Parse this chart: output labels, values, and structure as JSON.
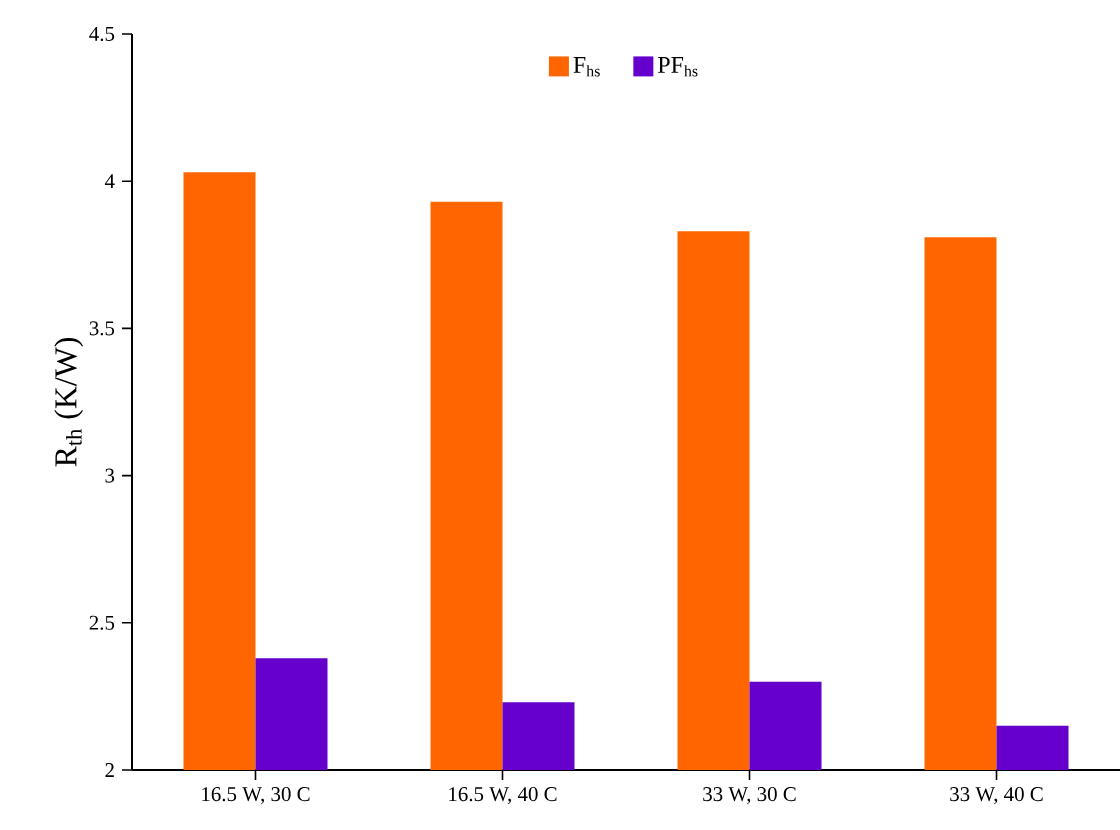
{
  "chart_data": {
    "type": "bar",
    "ylabel": "R$_{th}$ (K/W)",
    "categories": [
      "16.5 W, 30 C",
      "16.5 W, 40 C",
      "33 W, 30 C",
      "33 W, 40 C"
    ],
    "series": [
      {
        "name": "F$_{hs}$",
        "color": "#ff6600",
        "values": [
          4.03,
          3.93,
          3.83,
          3.81
        ]
      },
      {
        "name": "PF$_{hs}$",
        "color": "#6600cc",
        "values": [
          2.38,
          2.23,
          2.3,
          2.15
        ]
      }
    ],
    "ylim": [
      2,
      4.5
    ],
    "yticks": [
      2,
      2.5,
      3,
      3.5,
      4,
      4.5
    ],
    "grid": false,
    "legend": "top"
  }
}
